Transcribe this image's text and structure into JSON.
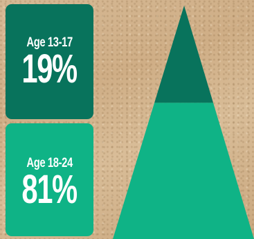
{
  "chart_data": {
    "type": "area",
    "categories": [
      "Age 13-17",
      "Age 18-24"
    ],
    "values": [
      "19%",
      "81%"
    ],
    "shares": [
      19,
      81
    ],
    "colors": [
      "#08735c",
      "#0fb386"
    ]
  }
}
